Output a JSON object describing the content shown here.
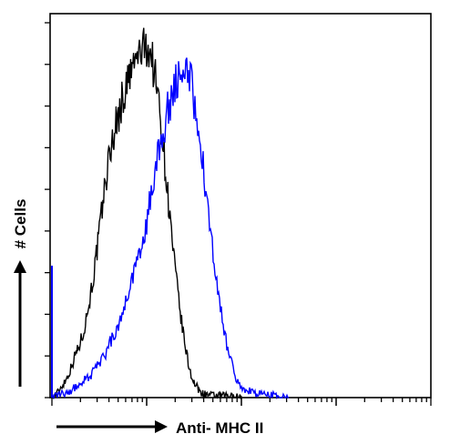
{
  "chart_data": {
    "type": "line",
    "title": "",
    "xlabel": "Anti- MHC II",
    "ylabel": "# Cells",
    "x_scale": "log",
    "x_range_decades": 4,
    "ylim": [
      0,
      100
    ],
    "grid": false,
    "series": [
      {
        "color": "#000000",
        "points": [
          [
            0.0,
            0
          ],
          [
            0.05,
            1
          ],
          [
            0.1,
            3
          ],
          [
            0.15,
            5
          ],
          [
            0.2,
            8
          ],
          [
            0.25,
            12
          ],
          [
            0.3,
            15
          ],
          [
            0.35,
            20
          ],
          [
            0.4,
            27
          ],
          [
            0.45,
            35
          ],
          [
            0.5,
            45
          ],
          [
            0.55,
            56
          ],
          [
            0.6,
            65
          ],
          [
            0.65,
            72
          ],
          [
            0.7,
            77
          ],
          [
            0.75,
            82
          ],
          [
            0.8,
            86
          ],
          [
            0.85,
            90
          ],
          [
            0.9,
            93
          ],
          [
            0.95,
            95
          ],
          [
            1.0,
            96
          ],
          [
            1.03,
            95
          ],
          [
            1.06,
            92
          ],
          [
            1.1,
            86
          ],
          [
            1.15,
            76
          ],
          [
            1.2,
            62
          ],
          [
            1.25,
            48
          ],
          [
            1.3,
            35
          ],
          [
            1.35,
            24
          ],
          [
            1.4,
            15
          ],
          [
            1.45,
            8
          ],
          [
            1.5,
            4
          ],
          [
            1.55,
            2
          ],
          [
            1.6,
            1
          ],
          [
            1.7,
            0.5
          ],
          [
            1.85,
            0.5
          ],
          [
            2.0,
            0
          ]
        ]
      },
      {
        "color": "#0000ff",
        "points": [
          [
            0.0,
            0
          ],
          [
            0.1,
            1
          ],
          [
            0.2,
            2
          ],
          [
            0.3,
            4
          ],
          [
            0.4,
            6
          ],
          [
            0.5,
            9
          ],
          [
            0.55,
            11
          ],
          [
            0.6,
            14
          ],
          [
            0.65,
            17
          ],
          [
            0.7,
            20
          ],
          [
            0.75,
            24
          ],
          [
            0.8,
            28
          ],
          [
            0.85,
            32
          ],
          [
            0.9,
            36
          ],
          [
            0.95,
            42
          ],
          [
            1.0,
            48
          ],
          [
            1.05,
            56
          ],
          [
            1.1,
            63
          ],
          [
            1.15,
            70
          ],
          [
            1.2,
            76
          ],
          [
            1.25,
            81
          ],
          [
            1.3,
            85
          ],
          [
            1.35,
            89
          ],
          [
            1.4,
            90
          ],
          [
            1.45,
            88
          ],
          [
            1.5,
            82
          ],
          [
            1.55,
            73
          ],
          [
            1.6,
            62
          ],
          [
            1.65,
            50
          ],
          [
            1.7,
            39
          ],
          [
            1.75,
            29
          ],
          [
            1.8,
            21
          ],
          [
            1.85,
            14
          ],
          [
            1.9,
            9
          ],
          [
            1.95,
            5
          ],
          [
            2.0,
            3
          ],
          [
            2.1,
            1.5
          ],
          [
            2.2,
            1
          ],
          [
            2.35,
            0.5
          ],
          [
            2.5,
            0
          ]
        ]
      }
    ]
  }
}
